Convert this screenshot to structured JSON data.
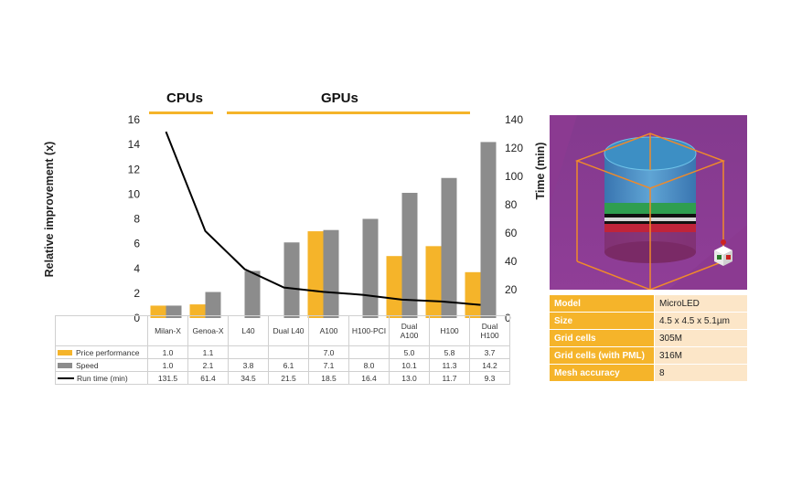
{
  "groups": {
    "cpus": "CPUs",
    "gpus": "GPUs"
  },
  "colors": {
    "price": "#F5B42A",
    "speed": "#8C8C8C",
    "line": "#000000",
    "accent": "#F5B42A"
  },
  "chart_data": {
    "type": "bar",
    "categories": [
      "Milan-X",
      "Genoa-X",
      "L40",
      "Dual L40",
      "A100",
      "H100-PCI",
      "Dual A100",
      "H100",
      "Dual H100"
    ],
    "category_labels": [
      [
        "Milan-X"
      ],
      [
        "Genoa-X"
      ],
      [
        "L40"
      ],
      [
        "Dual L40"
      ],
      [
        "A100"
      ],
      [
        "H100-PCI"
      ],
      [
        "Dual",
        "A100"
      ],
      [
        "H100"
      ],
      [
        "Dual",
        "H100"
      ]
    ],
    "ylabel": "Relative improvement (x)",
    "y2label": "Time (min)",
    "ylim": [
      0,
      16
    ],
    "y2lim": [
      0,
      140
    ],
    "yticks": [
      "0",
      "2",
      "4",
      "6",
      "8",
      "10",
      "12",
      "14",
      "16"
    ],
    "y2ticks": [
      "0",
      "20",
      "40",
      "60",
      "80",
      "100",
      "120",
      "140"
    ],
    "grid": false,
    "legend": "table below chart",
    "series": [
      {
        "name": "Price performance",
        "kind": "bar",
        "axis": "left",
        "values": [
          1.0,
          1.1,
          null,
          null,
          7.0,
          null,
          5.0,
          5.8,
          3.7
        ],
        "labels": [
          "1.0",
          "1.1",
          "",
          "",
          "7.0",
          "",
          "5.0",
          "5.8",
          "3.7"
        ]
      },
      {
        "name": "Speed",
        "kind": "bar",
        "axis": "left",
        "values": [
          1.0,
          2.1,
          3.8,
          6.1,
          7.1,
          8.0,
          10.1,
          11.3,
          14.2
        ],
        "labels": [
          "1.0",
          "2.1",
          "3.8",
          "6.1",
          "7.1",
          "8.0",
          "10.1",
          "11.3",
          "14.2"
        ]
      },
      {
        "name": "Run time (min)",
        "kind": "line",
        "axis": "right",
        "values": [
          131.5,
          61.4,
          34.5,
          21.5,
          18.5,
          16.4,
          13.0,
          11.7,
          9.3
        ],
        "labels": [
          "131.5",
          "61.4",
          "34.5",
          "21.5",
          "18.5",
          "16.4",
          "13.0",
          "11.7",
          "9.3"
        ]
      }
    ]
  },
  "info": [
    {
      "key": "Model",
      "value": "MicroLED"
    },
    {
      "key": "Size",
      "value": "4.5 x 4.5 x 5.1µm"
    },
    {
      "key": "Grid cells",
      "value": "305M"
    },
    {
      "key": "Grid cells (with PML)",
      "value": "316M"
    },
    {
      "key": "Mesh accuracy",
      "value": "8"
    }
  ]
}
